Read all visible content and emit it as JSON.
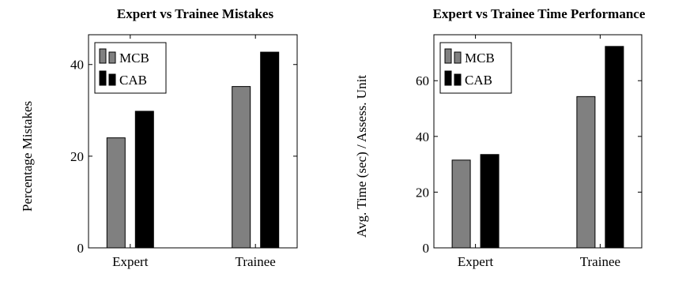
{
  "chart_data": [
    {
      "type": "bar",
      "title": "Expert vs Trainee Mistakes",
      "xlabel": "",
      "ylabel": "Percentage Mistakes",
      "categories": [
        "Expert",
        "Trainee"
      ],
      "series": [
        {
          "name": "MCB",
          "values": [
            24,
            35.2
          ],
          "color": "#808080"
        },
        {
          "name": "CAB",
          "values": [
            29.8,
            42.7
          ],
          "color": "#000000"
        }
      ],
      "ylim": [
        0,
        46.5
      ],
      "yticks": [
        0,
        20,
        40
      ],
      "legend": "top-left",
      "grid": false
    },
    {
      "type": "bar",
      "title": "Expert vs Trainee Time Performance",
      "xlabel": "",
      "ylabel": "Avg. Time (sec) / Assess. Unit",
      "categories": [
        "Expert",
        "Trainee"
      ],
      "series": [
        {
          "name": "MCB",
          "values": [
            31.5,
            54.3
          ],
          "color": "#808080"
        },
        {
          "name": "CAB",
          "values": [
            33.5,
            72.3
          ],
          "color": "#000000"
        }
      ],
      "ylim": [
        0,
        76.5
      ],
      "yticks": [
        0,
        20,
        40,
        60
      ],
      "legend": "top-left",
      "grid": false
    }
  ]
}
